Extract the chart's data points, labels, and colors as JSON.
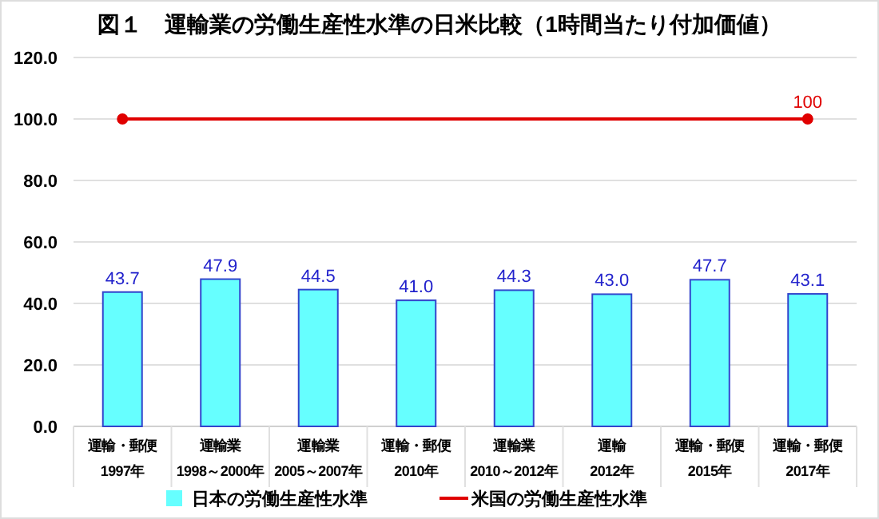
{
  "chart_data": {
    "type": "bar",
    "title": "図１　運輸業の労働生産性水準の日米比較（1時間当たり付加価値）",
    "categories": [
      "運輸・郵便\n1997年",
      "運輸業\n1998～2000年",
      "運輸業\n2005～2007年",
      "運輸・郵便\n2010年",
      "運輸業\n2010～2012年",
      "運輸\n2012年",
      "運輸・郵便\n2015年",
      "運輸・郵便\n2017年"
    ],
    "series": [
      {
        "name": "日本の労働生産性水準",
        "color": "#66ffff",
        "values": [
          43.7,
          47.9,
          44.5,
          41.0,
          44.3,
          43.0,
          47.7,
          43.1
        ],
        "value_labels": [
          "43.7",
          "47.9",
          "44.5",
          "41.0",
          "44.3",
          "43.0",
          "47.7",
          "43.1"
        ]
      },
      {
        "name": "米国の労働生産性水準",
        "type": "line",
        "color": "#e00000",
        "marker": "circle",
        "x": [
          "運輸・郵便\n1997年",
          "運輸・郵便\n2017年"
        ],
        "values": [
          100,
          100
        ],
        "value_labels": [
          null,
          "100"
        ]
      }
    ],
    "ylim": [
      0,
      120
    ],
    "yticks": [
      {
        "value": 0,
        "label": "0.0"
      },
      {
        "value": 20,
        "label": "20.0"
      },
      {
        "value": 40,
        "label": "40.0"
      },
      {
        "value": 60,
        "label": "60.0"
      },
      {
        "value": 80,
        "label": "80.0"
      },
      {
        "value": 100,
        "label": "100.0"
      },
      {
        "value": 120,
        "label": "120.0"
      }
    ],
    "grid": "y",
    "legend": "bottom"
  }
}
